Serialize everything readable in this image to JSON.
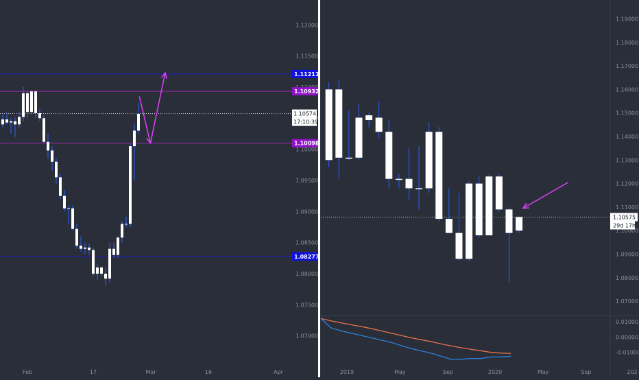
{
  "colors": {
    "background": "#2a2e39",
    "divider": "#ffffff",
    "axis_text": "#8a8f9c",
    "candle_up": "#ffffff",
    "candle_down": "#ffffff",
    "wick": "#2962ff",
    "blue_line": "#1d1dcc",
    "purple_line": "#9c27b0",
    "magenta_arrow": "#e040fb",
    "price_line": "#cfd2da",
    "osc_blue": "#2b82d9",
    "osc_orange": "#e8734a",
    "label_blue_bg": "#1010e0",
    "label_purple_bg": "#9013c9",
    "label_light_bg": "#ffffff",
    "label_light_text": "#131722"
  },
  "chart_data": [
    {
      "type": "candlestick",
      "ylim": [
        1.065,
        1.124
      ],
      "yticks": [
        1.07,
        1.075,
        1.08,
        1.085,
        1.09,
        1.095,
        1.1,
        1.105,
        1.11,
        1.115,
        1.12
      ],
      "ytick_labels": [
        "1.07000",
        "1.07500",
        "1.08000",
        "1.08500",
        "1.09000",
        "1.09500",
        "1.10000",
        "1.10500",
        "1.11000",
        "1.11500",
        "1.12000"
      ],
      "xtick_labels": [
        "Feb",
        "17",
        "Mar",
        "16",
        "Apr"
      ],
      "xtick_index": [
        6,
        22,
        36,
        50,
        67
      ],
      "x_count": 72,
      "candles": [
        [
          1.104,
          1.1055,
          1.1035,
          1.1048
        ],
        [
          1.1048,
          1.106,
          1.104,
          1.1043
        ],
        [
          1.1043,
          1.105,
          1.1025,
          1.1045
        ],
        [
          1.1045,
          1.1052,
          1.102,
          1.104
        ],
        [
          1.104,
          1.106,
          1.1035,
          1.1052
        ],
        [
          1.1052,
          1.11,
          1.1045,
          1.109
        ],
        [
          1.109,
          1.1095,
          1.105,
          1.106
        ],
        [
          1.106,
          1.1095,
          1.1055,
          1.1093
        ],
        [
          1.1093,
          1.1095,
          1.105,
          1.1058
        ],
        [
          1.1058,
          1.1065,
          1.1045,
          1.105
        ],
        [
          1.105,
          1.1055,
          1.101,
          1.1012
        ],
        [
          1.1012,
          1.1025,
          1.0985,
          1.0998
        ],
        [
          1.0998,
          1.1005,
          1.0965,
          1.098
        ],
        [
          1.098,
          1.0985,
          1.0945,
          1.0955
        ],
        [
          1.0955,
          1.096,
          1.092,
          1.0925
        ],
        [
          1.0925,
          1.0935,
          1.09,
          1.0905
        ],
        [
          1.0905,
          1.091,
          1.088,
          1.0905
        ],
        [
          1.0905,
          1.091,
          1.087,
          1.0872
        ],
        [
          1.0872,
          1.088,
          1.084,
          1.0845
        ],
        [
          1.0845,
          1.086,
          1.0835,
          1.084
        ],
        [
          1.084,
          1.085,
          1.0832,
          1.0842
        ],
        [
          1.0842,
          1.0848,
          1.083,
          1.0838
        ],
        [
          1.0838,
          1.0842,
          1.0795,
          1.08
        ],
        [
          1.08,
          1.0815,
          1.079,
          1.081
        ],
        [
          1.081,
          1.0812,
          1.0795,
          1.08
        ],
        [
          1.08,
          1.081,
          1.078,
          1.0792
        ],
        [
          1.0792,
          1.085,
          1.0785,
          1.084
        ],
        [
          1.084,
          1.085,
          1.0825,
          1.083
        ],
        [
          1.083,
          1.086,
          1.0825,
          1.0858
        ],
        [
          1.0858,
          1.0885,
          1.085,
          1.088
        ],
        [
          1.088,
          1.0892,
          1.0875,
          1.088
        ],
        [
          1.088,
          1.101,
          1.0875,
          1.1005
        ],
        [
          1.1005,
          1.104,
          1.095,
          1.103
        ],
        [
          1.103,
          1.1075,
          1.1025,
          1.1057
        ]
      ],
      "h_lines": [
        {
          "value": 1.11211,
          "label": "1.11211",
          "style": "blue"
        },
        {
          "value": 1.10932,
          "label": "1.10932",
          "style": "purple"
        },
        {
          "value": 1.10098,
          "label": "1.10098",
          "style": "purple"
        },
        {
          "value": 1.08277,
          "label": "1.08277",
          "style": "blue"
        }
      ],
      "last_price": {
        "value": 1.10574,
        "label": "1.10574",
        "countdown": "17:10:39"
      },
      "arrow_points": [
        [
          33.2,
          1.1085
        ],
        [
          35.9,
          1.101
        ],
        [
          39.5,
          1.1123
        ]
      ]
    },
    {
      "type": "candlestick",
      "ylim": [
        1.0645,
        1.198
      ],
      "yticks": [
        1.07,
        1.08,
        1.09,
        1.1,
        1.11,
        1.12,
        1.13,
        1.14,
        1.15,
        1.16,
        1.17,
        1.18,
        1.19
      ],
      "ytick_labels": [
        "1.07000",
        "1.08000",
        "1.09000",
        "1.10000",
        "1.11000",
        "1.12000",
        "1.13000",
        "1.14000",
        "1.15000",
        "1.16000",
        "1.17000",
        "1.18000",
        "1.19000"
      ],
      "xtick_labels": [
        "2019",
        "May",
        "Sep",
        "2020",
        "May",
        "Sep",
        "202"
      ],
      "xtick_index": [
        2.6,
        7.9,
        12.7,
        17.4,
        22.2,
        26.5,
        31.1
      ],
      "x_count": 33,
      "candles": [
        [
          1.13,
          1.163,
          1.127,
          1.16
        ],
        [
          1.16,
          1.164,
          1.122,
          1.131
        ],
        [
          1.131,
          1.151,
          1.13,
          1.131
        ],
        [
          1.131,
          1.154,
          1.13,
          1.148
        ],
        [
          1.147,
          1.15,
          1.144,
          1.149
        ],
        [
          1.148,
          1.155,
          1.139,
          1.142
        ],
        [
          1.142,
          1.147,
          1.118,
          1.122
        ],
        [
          1.122,
          1.124,
          1.118,
          1.122
        ],
        [
          1.122,
          1.135,
          1.113,
          1.118
        ],
        [
          1.118,
          1.136,
          1.109,
          1.118
        ],
        [
          1.118,
          1.146,
          1.116,
          1.142
        ],
        [
          1.142,
          1.144,
          1.104,
          1.105
        ],
        [
          1.105,
          1.118,
          1.099,
          1.099
        ],
        [
          1.099,
          1.116,
          1.087,
          1.088
        ],
        [
          1.088,
          1.121,
          1.087,
          1.12
        ],
        [
          1.12,
          1.123,
          1.097,
          1.098
        ],
        [
          1.098,
          1.124,
          1.098,
          1.123
        ],
        [
          1.123,
          1.124,
          1.108,
          1.109
        ],
        [
          1.109,
          1.11,
          1.078,
          1.099
        ],
        [
          1.1,
          1.106,
          1.099,
          1.1058
        ]
      ],
      "x_offset": 0.8,
      "last_price": {
        "value": 1.10575,
        "label": "1.10575",
        "countdown": "29d 17h"
      },
      "arrow_points": [
        [
          23.9,
          1.1205
        ],
        [
          19.4,
          1.1095
        ]
      ]
    },
    {
      "type": "line",
      "ylim": [
        -0.0195,
        0.0135
      ],
      "yticks": [
        0.01,
        0.0,
        -0.01
      ],
      "ytick_labels": [
        "0.01000",
        "0.00000",
        "-0.01000"
      ],
      "series": [
        {
          "color_key": "osc_orange",
          "x": [
            0,
            1,
            2,
            3,
            4,
            5,
            6,
            7,
            8,
            9,
            10,
            11,
            12,
            13,
            14,
            15,
            16,
            17,
            18,
            19
          ],
          "values": [
            0.012,
            0.0105,
            0.0092,
            0.008,
            0.0068,
            0.0055,
            0.004,
            0.0025,
            0.001,
            -0.0005,
            -0.0018,
            -0.003,
            -0.0045,
            -0.0058,
            -0.007,
            -0.008,
            -0.009,
            -0.01,
            -0.0105,
            -0.0107
          ]
        },
        {
          "color_key": "osc_blue",
          "x": [
            0,
            1,
            2,
            3,
            4,
            5,
            6,
            7,
            8,
            9,
            10,
            11,
            12,
            13,
            14,
            15,
            16,
            17,
            18,
            19
          ],
          "values": [
            0.012,
            0.006,
            0.004,
            0.0025,
            0.001,
            -0.0005,
            -0.002,
            -0.0035,
            -0.0055,
            -0.0075,
            -0.009,
            -0.0105,
            -0.0125,
            -0.0145,
            -0.0145,
            -0.014,
            -0.014,
            -0.013,
            -0.013,
            -0.0125
          ]
        }
      ]
    }
  ]
}
